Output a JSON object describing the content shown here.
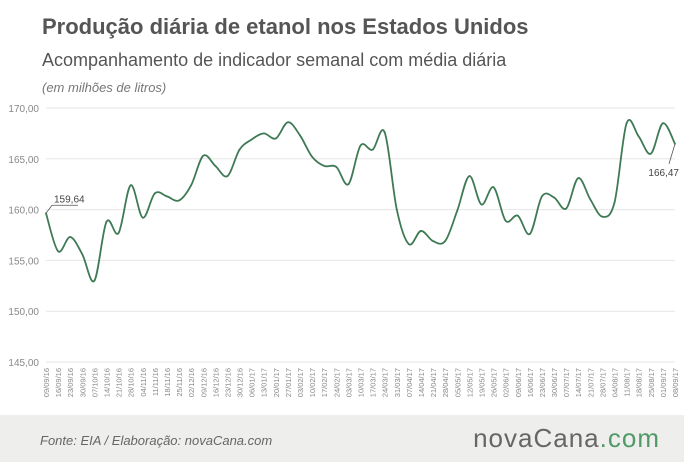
{
  "header": {
    "title": "Produção diária de etanol nos Estados Unidos",
    "subtitle": "Acompanhamento de indicador semanal com média diária",
    "unit": "(em milhões de litros)"
  },
  "footer": {
    "source": "Fonte:  EIA / Elaboração:  novaCana.com",
    "logo_prefix": "nova",
    "logo_main": "Cana",
    "logo_dot": ".",
    "logo_suffix": "com"
  },
  "colors": {
    "line": "#3f7a55",
    "grid": "#e6e6e6",
    "axis_text": "#888888"
  },
  "chart_data": {
    "type": "line",
    "title": "Produção diária de etanol nos Estados Unidos",
    "ylabel": "(em milhões de litros)",
    "ylim": [
      145,
      170
    ],
    "yticks": [
      "145,00",
      "150,00",
      "155,00",
      "160,00",
      "165,00",
      "170,00"
    ],
    "grid": true,
    "categories": [
      "09/09/16",
      "16/09/16",
      "23/09/16",
      "30/09/16",
      "07/10/16",
      "14/10/16",
      "21/10/16",
      "28/10/16",
      "04/11/16",
      "11/11/16",
      "18/11/16",
      "25/11/16",
      "02/12/16",
      "09/12/16",
      "16/12/16",
      "23/12/16",
      "30/12/16",
      "06/01/17",
      "13/01/17",
      "20/01/17",
      "27/01/17",
      "03/02/17",
      "10/02/17",
      "17/02/17",
      "24/02/17",
      "03/03/17",
      "10/03/17",
      "17/03/17",
      "24/03/17",
      "31/03/17",
      "07/04/17",
      "14/04/17",
      "21/04/17",
      "28/04/17",
      "05/05/17",
      "12/05/17",
      "19/05/17",
      "26/05/17",
      "02/06/17",
      "09/06/17",
      "16/06/17",
      "23/06/17",
      "30/06/17",
      "07/07/17",
      "14/07/17",
      "21/07/17",
      "28/07/17",
      "04/08/17",
      "11/08/17",
      "18/08/17",
      "25/08/17",
      "01/09/17",
      "08/09/17"
    ],
    "values": [
      159.64,
      155.9,
      157.3,
      155.6,
      153.0,
      158.8,
      157.7,
      162.4,
      159.2,
      161.6,
      161.3,
      160.9,
      162.4,
      165.3,
      164.3,
      163.3,
      165.9,
      166.9,
      167.5,
      167.0,
      168.6,
      167.3,
      165.2,
      164.3,
      164.2,
      162.5,
      166.3,
      165.9,
      167.6,
      160.0,
      156.6,
      157.9,
      156.9,
      156.9,
      159.9,
      163.3,
      160.5,
      162.2,
      158.9,
      159.4,
      157.6,
      161.3,
      161.2,
      160.1,
      163.1,
      161.0,
      159.3,
      160.7,
      168.5,
      167.2,
      165.5,
      168.5,
      166.47
    ],
    "annotations": [
      {
        "index": 0,
        "text": "159,64"
      },
      {
        "index": 52,
        "text": "166,47"
      }
    ]
  }
}
